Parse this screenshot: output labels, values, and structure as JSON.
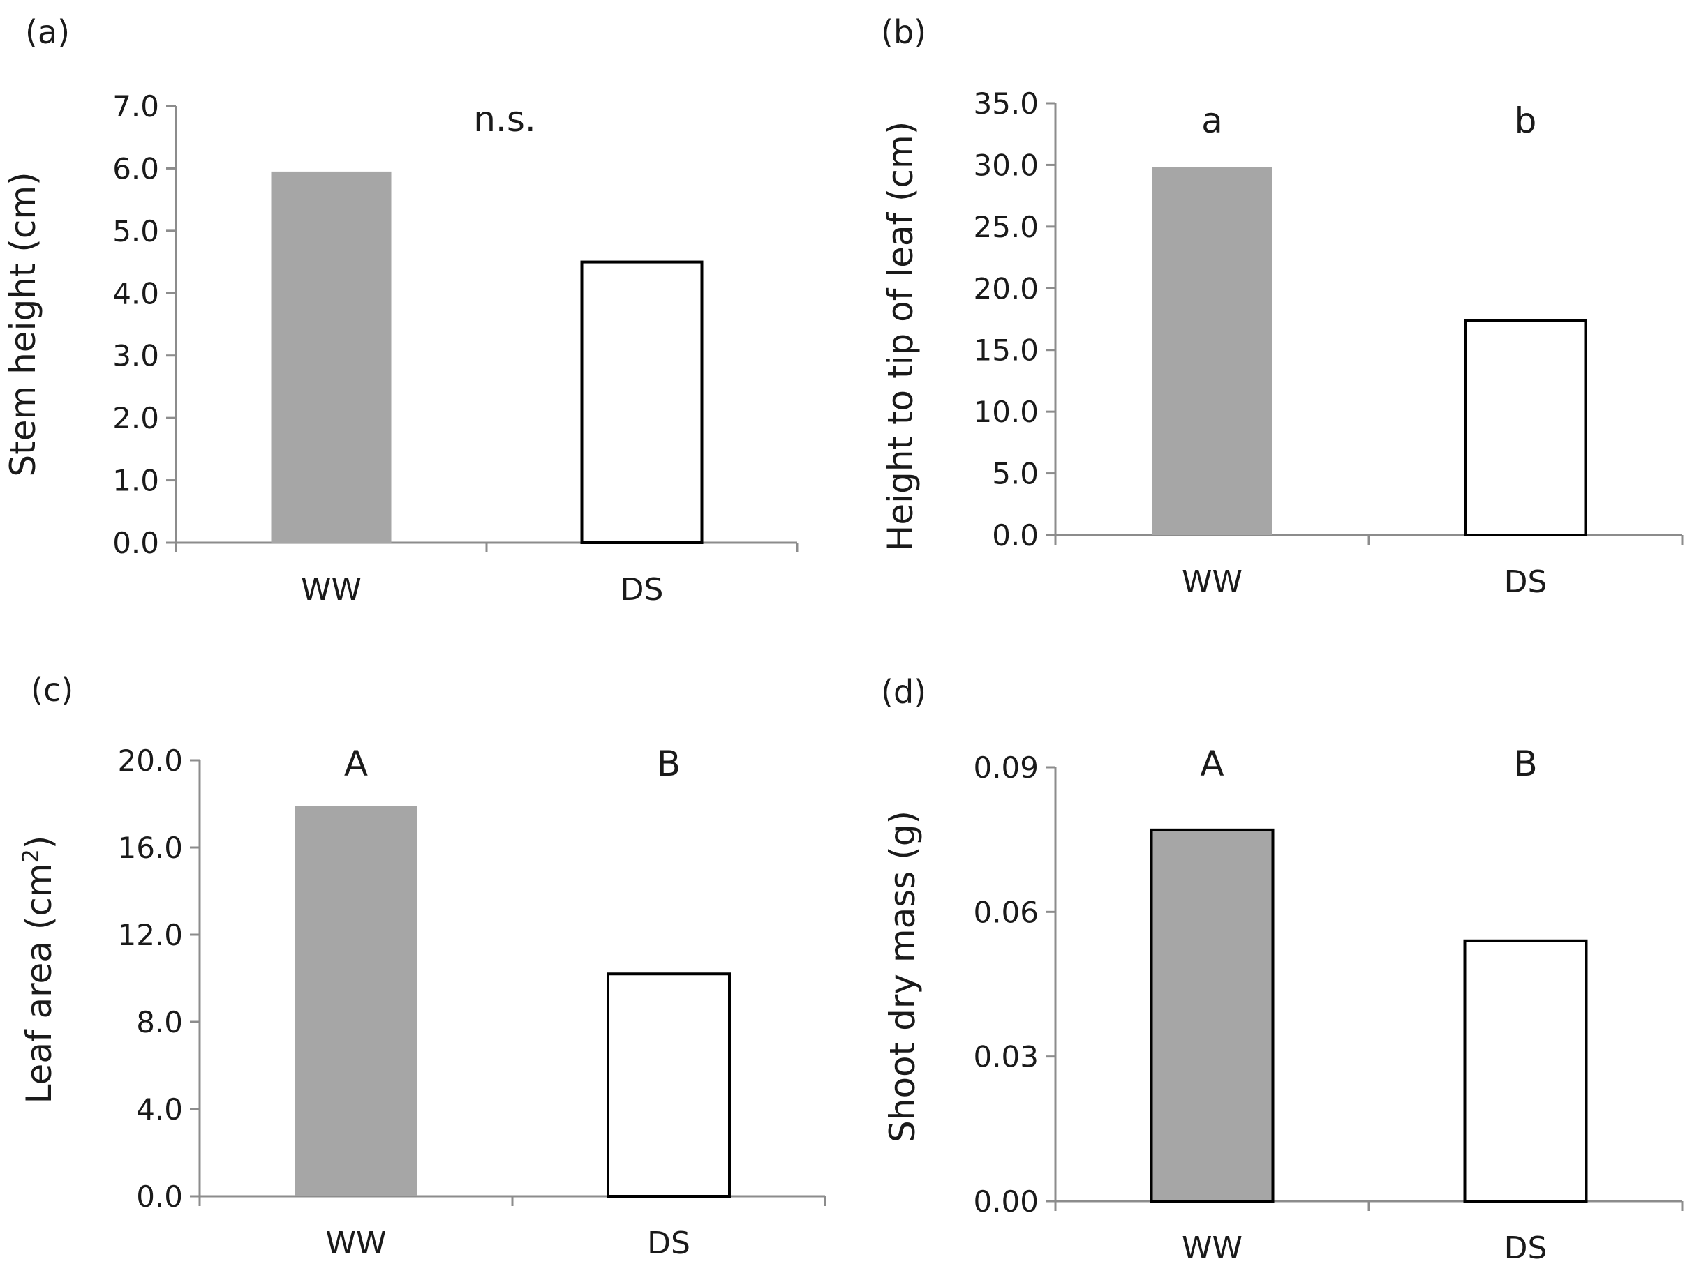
{
  "chart_data": [
    {
      "type": "bar",
      "panel_label": "(a)",
      "categories": [
        "WW",
        "DS"
      ],
      "values": [
        5.95,
        4.5
      ],
      "ylabel": "Stem height (cm)",
      "ylabel_sup": "",
      "ylabel_tail": "",
      "ylim": [
        0,
        7
      ],
      "yticks": [
        "0.0",
        "1.0",
        "2.0",
        "3.0",
        "4.0",
        "5.0",
        "6.0",
        "7.0"
      ],
      "significance": [
        "n.s."
      ],
      "significance_centered": true,
      "bar_fills": [
        "#a6a6a6",
        "#ffffff"
      ],
      "bar_strokes": [
        "none",
        "#000000"
      ]
    },
    {
      "type": "bar",
      "panel_label": "(b)",
      "categories": [
        "WW",
        "DS"
      ],
      "values": [
        29.8,
        17.4
      ],
      "ylabel": "Height to tip of leaf (cm)",
      "ylabel_sup": "",
      "ylabel_tail": "",
      "ylim": [
        0,
        35
      ],
      "yticks": [
        "0.0",
        "5.0",
        "10.0",
        "15.0",
        "20.0",
        "25.0",
        "30.0",
        "35.0"
      ],
      "significance": [
        "a",
        "b"
      ],
      "significance_centered": false,
      "bar_fills": [
        "#a6a6a6",
        "#ffffff"
      ],
      "bar_strokes": [
        "none",
        "#000000"
      ]
    },
    {
      "type": "bar",
      "panel_label": "(c)",
      "categories": [
        "WW",
        "DS"
      ],
      "values": [
        17.9,
        10.2
      ],
      "ylabel": "Leaf area (cm",
      "ylabel_sup": "2",
      "ylabel_tail": ")",
      "ylim": [
        0,
        20
      ],
      "yticks": [
        "0.0",
        "4.0",
        "8.0",
        "12.0",
        "16.0",
        "20.0"
      ],
      "significance": [
        "A",
        "B"
      ],
      "significance_centered": false,
      "bar_fills": [
        "#a6a6a6",
        "#ffffff"
      ],
      "bar_strokes": [
        "none",
        "#000000"
      ]
    },
    {
      "type": "bar",
      "panel_label": "(d)",
      "categories": [
        "WW",
        "DS"
      ],
      "values": [
        0.077,
        0.054
      ],
      "ylabel": "Shoot dry mass (g)",
      "ylabel_sup": "",
      "ylabel_tail": "",
      "ylim": [
        0,
        0.09
      ],
      "yticks": [
        "0.00",
        "0.03",
        "0.06",
        "0.09"
      ],
      "significance": [
        "A",
        "B"
      ],
      "significance_centered": false,
      "bar_fills": [
        "#a6a6a6",
        "#ffffff"
      ],
      "bar_strokes": [
        "#000000",
        "#000000"
      ]
    }
  ]
}
